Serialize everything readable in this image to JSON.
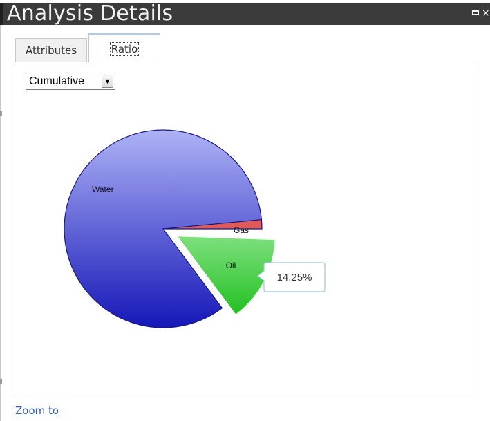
{
  "window": {
    "title": "Analysis Details",
    "maximize_icon": "maximize-icon",
    "close_glyph": "×"
  },
  "tabs": [
    {
      "label": "Attributes",
      "selected": false
    },
    {
      "label": "Ratio",
      "selected": true
    }
  ],
  "dropdown": {
    "selected": "Cumulative",
    "arrow_icon": "triangle-down-icon",
    "arrow_glyph": "▼"
  },
  "chart_data": {
    "type": "pie",
    "slices": [
      {
        "label": "Water",
        "value": 84.25,
        "color_top": "#aeb2f5",
        "color_bottom": "#1517b8"
      },
      {
        "label": "Gas",
        "value": 1.5,
        "color": "#e05a5a"
      },
      {
        "label": "Oil",
        "value": 14.25,
        "color_top": "#7ee07e",
        "color_bottom": "#22c022",
        "exploded": true
      }
    ],
    "tooltip": {
      "label": "14.25%",
      "slice": "Oil"
    }
  },
  "footer": {
    "zoom_link": "Zoom to"
  }
}
